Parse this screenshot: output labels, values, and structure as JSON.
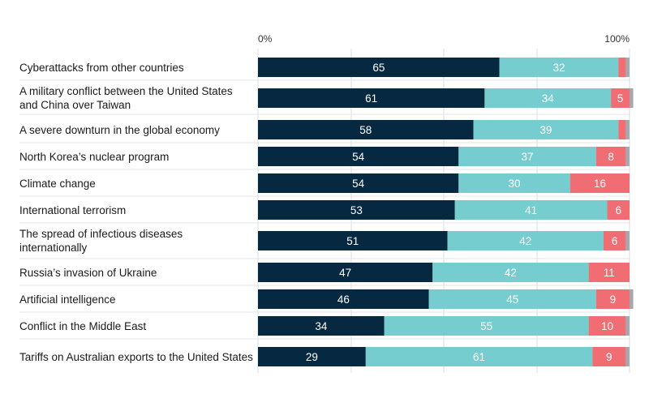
{
  "chart_data": {
    "type": "bar",
    "orientation": "horizontal",
    "stacked": true,
    "title": "",
    "xlabel": "",
    "ylabel": "",
    "xlim": [
      0,
      100
    ],
    "x_ticks": [
      "0%",
      "100%"
    ],
    "colors": [
      "#062840",
      "#76cdd0",
      "#f06e73",
      "#a4a9ad"
    ],
    "categories": [
      "Cyberattacks from other countries",
      "A military conflict between the United States and China over Taiwan",
      "A severe downturn in the global economy",
      "North Korea’s nuclear program",
      "Climate change",
      "International terrorism",
      "The spread of infectious diseases internationally",
      "Russia’s invasion of Ukraine",
      "Artificial intelligence",
      "Conflict in the Middle East",
      "Tariffs on Australian exports to the United States"
    ],
    "series": [
      {
        "name": "",
        "values": [
          65,
          61,
          58,
          54,
          54,
          53,
          51,
          47,
          46,
          34,
          29
        ]
      },
      {
        "name": "",
        "values": [
          32,
          34,
          39,
          37,
          30,
          41,
          42,
          42,
          45,
          55,
          61
        ]
      },
      {
        "name": "",
        "values": [
          2,
          5,
          2,
          8,
          16,
          6,
          6,
          11,
          9,
          10,
          9
        ]
      },
      {
        "name": "",
        "values": [
          1,
          1,
          1,
          1,
          0,
          0,
          1,
          0,
          1,
          1,
          1
        ]
      }
    ],
    "labels": [
      [
        "65",
        "32",
        "",
        ""
      ],
      [
        "61",
        "34",
        "5",
        ""
      ],
      [
        "58",
        "39",
        "",
        ""
      ],
      [
        "54",
        "37",
        "8",
        ""
      ],
      [
        "54",
        "30",
        "16",
        ""
      ],
      [
        "53",
        "41",
        "6",
        ""
      ],
      [
        "51",
        "42",
        "6",
        ""
      ],
      [
        "47",
        "42",
        "11",
        ""
      ],
      [
        "46",
        "45",
        "9",
        ""
      ],
      [
        "34",
        "55",
        "10",
        ""
      ],
      [
        "29",
        "61",
        "9",
        ""
      ]
    ]
  }
}
